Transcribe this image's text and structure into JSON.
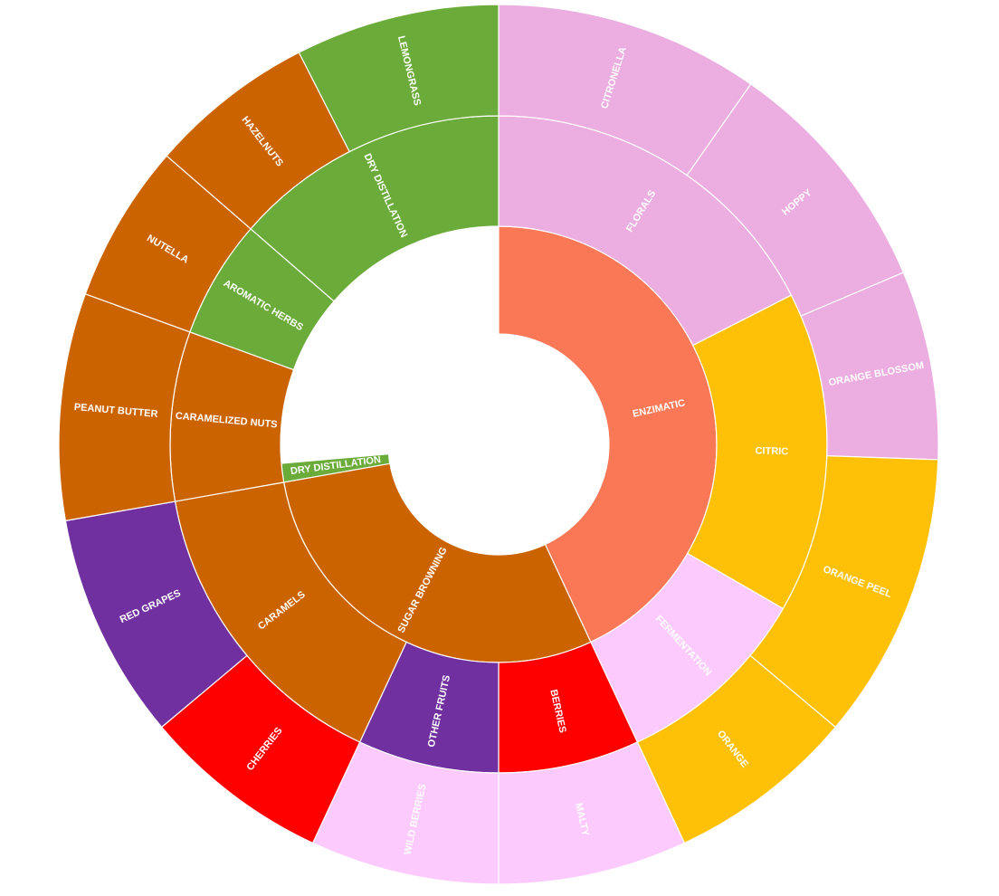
{
  "chart_data": {
    "type": "sunburst",
    "title": "",
    "rings": [
      {
        "level": 1,
        "segments": [
          {
            "label": "ENZIMATIC",
            "start": 0,
            "end": 155,
            "color": "#fa7856"
          },
          {
            "label": "SUGAR BROWNING",
            "start": 155,
            "end": 260,
            "color": "#cb6400"
          },
          {
            "label": "DRY DISTILLATION",
            "start": 260,
            "end": 265,
            "color": "#6aab3a"
          }
        ]
      },
      {
        "level": 2,
        "segments": [
          {
            "label": "FLORALS",
            "start": 0,
            "end": 63,
            "color": "#ecaee0"
          },
          {
            "label": "CITRIC",
            "start": 63,
            "end": 120,
            "color": "#ffc107"
          },
          {
            "label": "FERMENTATION",
            "start": 120,
            "end": 155,
            "color": "#fccafc"
          },
          {
            "label": "BERRIES",
            "start": 155,
            "end": 180,
            "color": "#fe0000"
          },
          {
            "label": "OTHER FRUITS",
            "start": 180,
            "end": 205,
            "color": "#7030a0"
          },
          {
            "label": "CARAMELS",
            "start": 205,
            "end": 260,
            "color": "#cb6400"
          },
          {
            "label": "CARAMELIZED NUTS",
            "start": 260,
            "end": 290,
            "color": "#cb6400"
          },
          {
            "label": "AROMATIC HERBS",
            "start": 290,
            "end": 311,
            "color": "#6aab3a"
          },
          {
            "label": "DRY DISTILLATION",
            "start": 311,
            "end": 360,
            "color": "#6aab3a"
          }
        ]
      },
      {
        "level": 3,
        "segments": [
          {
            "label": "CITRONELLA",
            "start": 0,
            "end": 35,
            "color": "#ecaee0"
          },
          {
            "label": "HOPPY",
            "start": 35,
            "end": 67,
            "color": "#ecaee0"
          },
          {
            "label": "ORANGE BLOSSOM",
            "start": 67,
            "end": 92,
            "color": "#ecaee0"
          },
          {
            "label": "ORANGE PEEL",
            "start": 92,
            "end": 130,
            "color": "#ffc107"
          },
          {
            "label": "ORANGE",
            "start": 130,
            "end": 155,
            "color": "#ffc107"
          },
          {
            "label": "MALTY",
            "start": 155,
            "end": 180,
            "color": "#fccafc"
          },
          {
            "label": "WILD BERRIES",
            "start": 180,
            "end": 205,
            "color": "#fccafc"
          },
          {
            "label": "CHERRIES",
            "start": 205,
            "end": 230,
            "color": "#fe0000"
          },
          {
            "label": "RED GRAPES",
            "start": 230,
            "end": 260,
            "color": "#7030a0"
          },
          {
            "label": "PEANUT BUTTER",
            "start": 260,
            "end": 290,
            "color": "#cb6400"
          },
          {
            "label": "NUTELLA",
            "start": 290,
            "end": 311,
            "color": "#cb6400"
          },
          {
            "label": "HAZELNUTS",
            "start": 311,
            "end": 333,
            "color": "#cb6400"
          },
          {
            "label": "LEMONGRASS",
            "start": 333,
            "end": 360,
            "color": "#6aab3a"
          }
        ]
      }
    ]
  }
}
